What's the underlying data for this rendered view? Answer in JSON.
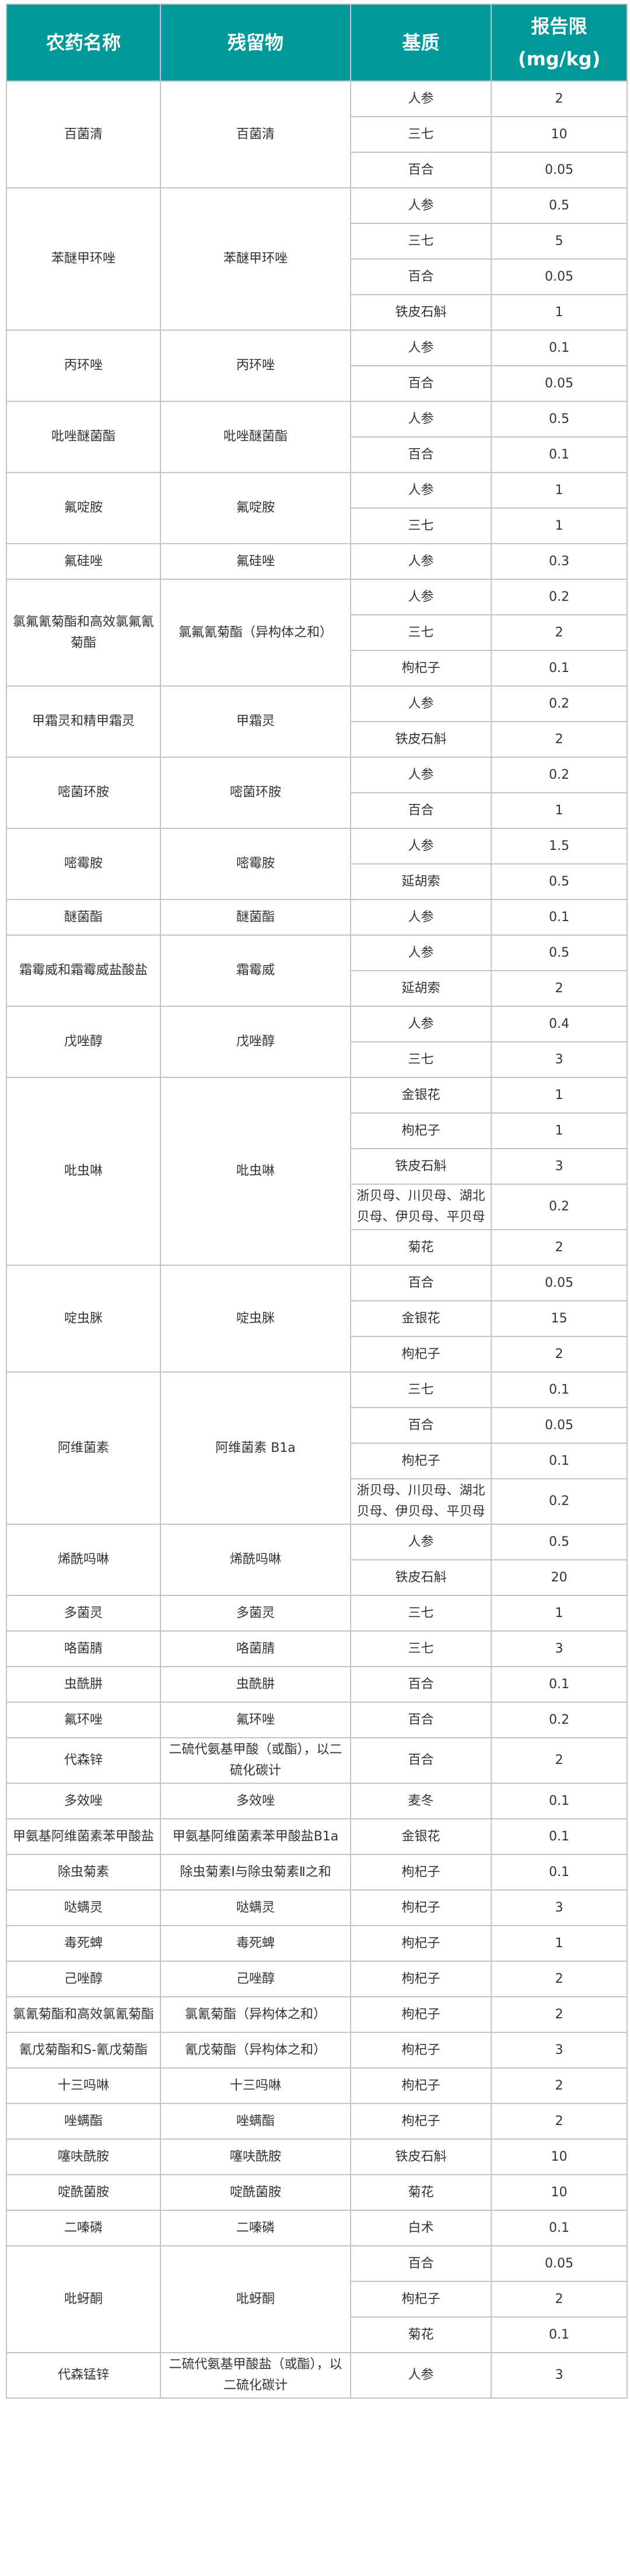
{
  "header": {
    "pesticide": "农药名称",
    "residue": "残留物",
    "matrix": "基质",
    "limit_line1": "报告限",
    "limit_line2": "(mg/kg)"
  },
  "colors": {
    "header_bg": "#00999a",
    "border": "#c4c4c4"
  },
  "groups": [
    {
      "pesticide": "百菌清",
      "residue": "百菌清",
      "items": [
        {
          "matrix": "人参",
          "limit": "2"
        },
        {
          "matrix": "三七",
          "limit": "10"
        },
        {
          "matrix": "百合",
          "limit": "0.05"
        }
      ]
    },
    {
      "pesticide": "苯醚甲环唑",
      "residue": "苯醚甲环唑",
      "items": [
        {
          "matrix": "人参",
          "limit": "0.5"
        },
        {
          "matrix": "三七",
          "limit": "5"
        },
        {
          "matrix": "百合",
          "limit": "0.05"
        },
        {
          "matrix": "铁皮石斛",
          "limit": "1"
        }
      ]
    },
    {
      "pesticide": "丙环唑",
      "residue": "丙环唑",
      "items": [
        {
          "matrix": "人参",
          "limit": "0.1"
        },
        {
          "matrix": "百合",
          "limit": "0.05"
        }
      ]
    },
    {
      "pesticide": "吡唑醚菌酯",
      "residue": "吡唑醚菌酯",
      "items": [
        {
          "matrix": "人参",
          "limit": "0.5"
        },
        {
          "matrix": "百合",
          "limit": "0.1"
        }
      ]
    },
    {
      "pesticide": "氟啶胺",
      "residue": "氟啶胺",
      "items": [
        {
          "matrix": "人参",
          "limit": "1"
        },
        {
          "matrix": "三七",
          "limit": "1"
        }
      ]
    },
    {
      "pesticide": "氟硅唑",
      "residue": "氟硅唑",
      "items": [
        {
          "matrix": "人参",
          "limit": "0.3"
        }
      ]
    },
    {
      "pesticide": "氯氟氰菊酯和高效氯氟氰菊酯",
      "residue": "氯氟氰菊酯（异构体之和）",
      "items": [
        {
          "matrix": "人参",
          "limit": "0.2"
        },
        {
          "matrix": "三七",
          "limit": "2"
        },
        {
          "matrix": "枸杞子",
          "limit": "0.1"
        }
      ]
    },
    {
      "pesticide": "甲霜灵和精甲霜灵",
      "residue": "甲霜灵",
      "items": [
        {
          "matrix": "人参",
          "limit": "0.2"
        },
        {
          "matrix": "铁皮石斛",
          "limit": "2"
        }
      ]
    },
    {
      "pesticide": "嘧菌环胺",
      "residue": "嘧菌环胺",
      "items": [
        {
          "matrix": "人参",
          "limit": "0.2"
        },
        {
          "matrix": "百合",
          "limit": "1"
        }
      ]
    },
    {
      "pesticide": "嘧霉胺",
      "residue": "嘧霉胺",
      "items": [
        {
          "matrix": "人参",
          "limit": "1.5"
        },
        {
          "matrix": "延胡索",
          "limit": "0.5"
        }
      ]
    },
    {
      "pesticide": "醚菌酯",
      "residue": "醚菌酯",
      "items": [
        {
          "matrix": "人参",
          "limit": "0.1"
        }
      ]
    },
    {
      "pesticide": "霜霉威和霜霉威盐酸盐",
      "residue": "霜霉威",
      "items": [
        {
          "matrix": "人参",
          "limit": "0.5"
        },
        {
          "matrix": "延胡索",
          "limit": "2"
        }
      ]
    },
    {
      "pesticide": "戊唑醇",
      "residue": "戊唑醇",
      "items": [
        {
          "matrix": "人参",
          "limit": "0.4"
        },
        {
          "matrix": "三七",
          "limit": "3"
        }
      ]
    },
    {
      "pesticide": "吡虫啉",
      "residue": "吡虫啉",
      "items": [
        {
          "matrix": "金银花",
          "limit": "1"
        },
        {
          "matrix": "枸杞子",
          "limit": "1"
        },
        {
          "matrix": "铁皮石斛",
          "limit": "3"
        },
        {
          "matrix": "浙贝母、川贝母、湖北贝母、伊贝母、平贝母",
          "limit": "0.2"
        },
        {
          "matrix": "菊花",
          "limit": "2"
        }
      ]
    },
    {
      "pesticide": "啶虫脒",
      "residue": "啶虫脒",
      "items": [
        {
          "matrix": "百合",
          "limit": "0.05"
        },
        {
          "matrix": "金银花",
          "limit": "15"
        },
        {
          "matrix": "枸杞子",
          "limit": "2"
        }
      ]
    },
    {
      "pesticide": "阿维菌素",
      "residue": "阿维菌素 B1a",
      "items": [
        {
          "matrix": "三七",
          "limit": "0.1"
        },
        {
          "matrix": "百合",
          "limit": "0.05"
        },
        {
          "matrix": "枸杞子",
          "limit": "0.1"
        },
        {
          "matrix": "浙贝母、川贝母、湖北贝母、伊贝母、平贝母",
          "limit": "0.2"
        }
      ]
    },
    {
      "pesticide": "烯酰吗啉",
      "residue": "烯酰吗啉",
      "items": [
        {
          "matrix": "人参",
          "limit": "0.5"
        },
        {
          "matrix": "铁皮石斛",
          "limit": "20"
        }
      ]
    },
    {
      "pesticide": "多菌灵",
      "residue": "多菌灵",
      "items": [
        {
          "matrix": "三七",
          "limit": "1"
        }
      ]
    },
    {
      "pesticide": "咯菌腈",
      "residue": "咯菌腈",
      "items": [
        {
          "matrix": "三七",
          "limit": "3"
        }
      ]
    },
    {
      "pesticide": "虫酰肼",
      "residue": "虫酰肼",
      "items": [
        {
          "matrix": "百合",
          "limit": "0.1"
        }
      ]
    },
    {
      "pesticide": "氟环唑",
      "residue": "氟环唑",
      "items": [
        {
          "matrix": "百合",
          "limit": "0.2"
        }
      ]
    },
    {
      "pesticide": "代森锌",
      "residue": "二硫代氨基甲酸（或酯），以二硫化碳计",
      "items": [
        {
          "matrix": "百合",
          "limit": "2"
        }
      ]
    },
    {
      "pesticide": "多效唑",
      "residue": "多效唑",
      "items": [
        {
          "matrix": "麦冬",
          "limit": "0.1"
        }
      ]
    },
    {
      "pesticide": "甲氨基阿维菌素苯甲酸盐",
      "residue": "甲氨基阿维菌素苯甲酸盐B1a",
      "items": [
        {
          "matrix": "金银花",
          "limit": "0.1"
        }
      ]
    },
    {
      "pesticide": "除虫菊素",
      "residue": "除虫菊素Ⅰ与除虫菊素Ⅱ之和",
      "items": [
        {
          "matrix": "枸杞子",
          "limit": "0.1"
        }
      ]
    },
    {
      "pesticide": "哒螨灵",
      "residue": "哒螨灵",
      "items": [
        {
          "matrix": "枸杞子",
          "limit": "3"
        }
      ]
    },
    {
      "pesticide": "毒死蜱",
      "residue": "毒死蜱",
      "items": [
        {
          "matrix": "枸杞子",
          "limit": "1"
        }
      ]
    },
    {
      "pesticide": "己唑醇",
      "residue": "己唑醇",
      "items": [
        {
          "matrix": "枸杞子",
          "limit": "2"
        }
      ]
    },
    {
      "pesticide": "氯氰菊酯和高效氯氰菊酯",
      "residue": "氯氰菊酯（异构体之和）",
      "items": [
        {
          "matrix": "枸杞子",
          "limit": "2"
        }
      ]
    },
    {
      "pesticide": "氰戊菊酯和S-氰戊菊酯",
      "residue": "氰戊菊酯（异构体之和）",
      "items": [
        {
          "matrix": "枸杞子",
          "limit": "3"
        }
      ]
    },
    {
      "pesticide": "十三吗啉",
      "residue": "十三吗啉",
      "items": [
        {
          "matrix": "枸杞子",
          "limit": "2"
        }
      ]
    },
    {
      "pesticide": "唑螨酯",
      "residue": "唑螨酯",
      "items": [
        {
          "matrix": "枸杞子",
          "limit": "2"
        }
      ]
    },
    {
      "pesticide": "噻呋酰胺",
      "residue": "噻呋酰胺",
      "items": [
        {
          "matrix": "铁皮石斛",
          "limit": "10"
        }
      ]
    },
    {
      "pesticide": "啶酰菌胺",
      "residue": "啶酰菌胺",
      "items": [
        {
          "matrix": "菊花",
          "limit": "10"
        }
      ]
    },
    {
      "pesticide": "二嗪磷",
      "residue": "二嗪磷",
      "items": [
        {
          "matrix": "白术",
          "limit": "0.1"
        }
      ]
    },
    {
      "pesticide": "吡蚜酮",
      "residue": "吡蚜酮",
      "items": [
        {
          "matrix": "百合",
          "limit": "0.05"
        },
        {
          "matrix": "枸杞子",
          "limit": "2"
        },
        {
          "matrix": "菊花",
          "limit": "0.1"
        }
      ]
    },
    {
      "pesticide": "代森锰锌",
      "residue": "二硫代氨基甲酸盐（或酯），以二硫化碳计",
      "items": [
        {
          "matrix": "人参",
          "limit": "3"
        }
      ]
    }
  ]
}
